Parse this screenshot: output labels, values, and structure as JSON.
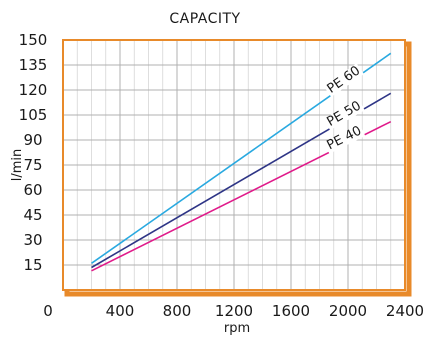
{
  "chart_data": {
    "type": "line",
    "title": "CAPACITY",
    "xlabel": "rpm",
    "ylabel": "l/min",
    "x_origin_label": "0",
    "xlim": [
      0,
      2400
    ],
    "ylim": [
      0,
      150
    ],
    "x_ticks": [
      400,
      800,
      1200,
      1600,
      2000,
      2400
    ],
    "y_ticks": [
      15,
      30,
      45,
      60,
      75,
      90,
      105,
      120,
      135,
      150
    ],
    "grid": true,
    "frame_color": "#e88a2a",
    "series": [
      {
        "name": "PE 60",
        "color": "#29a9e0",
        "x": [
          200,
          2300
        ],
        "y": [
          16,
          142
        ]
      },
      {
        "name": "PE 50",
        "color": "#2e3586",
        "x": [
          200,
          2300
        ],
        "y": [
          13.5,
          118
        ]
      },
      {
        "name": "PE 40",
        "color": "#e01a8a",
        "x": [
          200,
          2300
        ],
        "y": [
          11.5,
          101
        ]
      }
    ]
  }
}
